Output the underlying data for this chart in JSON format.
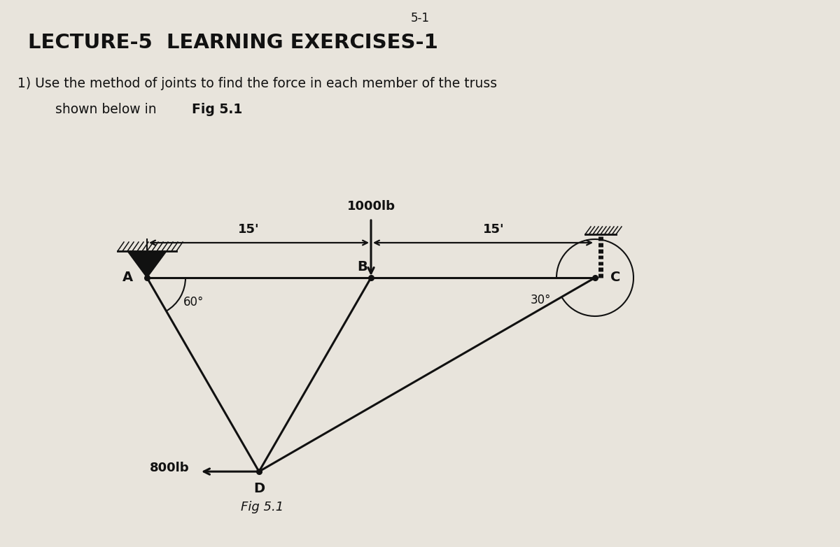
{
  "bg_color": "#e8e4dc",
  "page_num": "5-1",
  "title": "LECTURE-5  LEARNING EXERCISES-1",
  "question_line1": "1) Use the method of joints to find the force in each member of the truss",
  "question_line2": "    shown below in ",
  "question_fig_ref": "Fig 5.1",
  "fig_label": "Fig 5.1",
  "force_1000_label": "1000lb",
  "force_800_label": "800lb",
  "dim_15_1": "15'",
  "dim_15_2": "15'",
  "angle_A": "60°",
  "angle_C": "30°",
  "line_color": "#111111",
  "text_color": "#111111"
}
